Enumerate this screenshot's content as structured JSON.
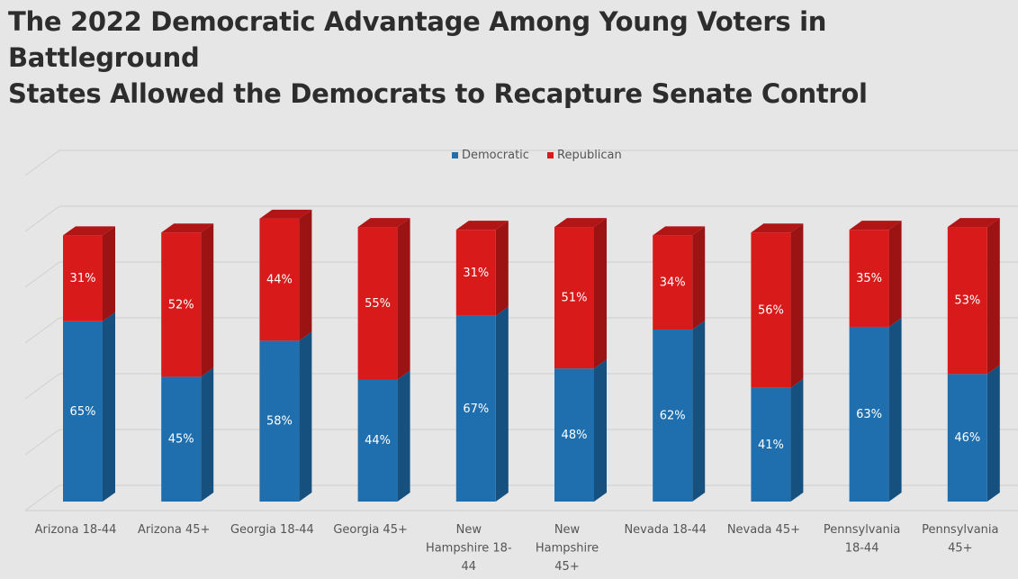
{
  "title_line1": "The 2022 Democratic Advantage Among Young Voters in Battleground",
  "title_line2": "States Allowed the Democrats to Recapture Senate Control",
  "chart_data": {
    "type": "bar",
    "stacked": true,
    "three_d": true,
    "title": "The 2022 Democratic Advantage Among Young Voters in Battleground States Allowed the Democrats to Recapture Senate Control",
    "categories": [
      [
        "Arizona 18-44"
      ],
      [
        "Arizona 45+"
      ],
      [
        "Georgia 18-44"
      ],
      [
        "Georgia 45+"
      ],
      [
        "New",
        "Hampshire 18-",
        "44"
      ],
      [
        "New",
        "Hampshire",
        "45+"
      ],
      [
        "Nevada 18-44"
      ],
      [
        "Nevada 45+"
      ],
      [
        "Pennsylvania",
        "18-44"
      ],
      [
        "Pennsylvania",
        "45+"
      ]
    ],
    "series": [
      {
        "name": "Democratic",
        "color": "#1f6faf",
        "values": [
          65,
          45,
          58,
          44,
          67,
          48,
          62,
          41,
          63,
          46
        ]
      },
      {
        "name": "Republican",
        "color": "#d91a1a",
        "values": [
          31,
          52,
          44,
          55,
          31,
          51,
          34,
          56,
          35,
          53
        ]
      }
    ],
    "value_suffix": "%",
    "legend_position": "top-center",
    "grid": true,
    "ylim": [
      0,
      120
    ]
  }
}
